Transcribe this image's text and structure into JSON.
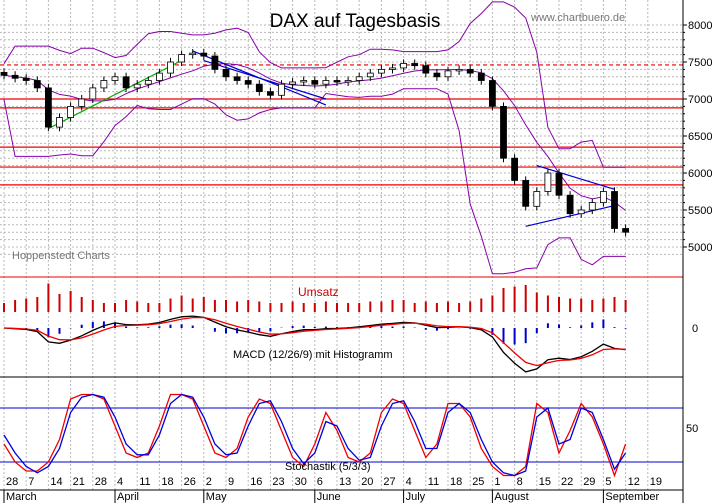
{
  "header": {
    "title": "DAX auf Tagesbasis",
    "website": "www.chartbuero.de",
    "source": "Hoppenstedt Charts"
  },
  "panels": {
    "volume_label": "Umsatz",
    "macd_label": "MACD (12/26/9) mit Histogramm",
    "stoch_label": "Stochastik (5/3/3)"
  },
  "colors": {
    "grid": "#b8b8b8",
    "resistance": "#ee0000",
    "bollinger": "#8800aa",
    "trendline": "#0000cc",
    "uptrend": "#00aa00",
    "stoch_k": "#ee0000",
    "stoch_d": "#0000dd",
    "stoch_band": "#0000cc",
    "volume": "#cc0000",
    "macd": "#000000",
    "signal": "#ee0000",
    "histogram": "#0000cc"
  },
  "chart_data": {
    "type": "candlestick",
    "title": "DAX auf Tagesbasis",
    "y_axis": {
      "ticks": [
        5000,
        5500,
        6000,
        6500,
        7000,
        7500,
        8000
      ],
      "range": [
        4900,
        8000
      ],
      "tick_labels": [
        "5000",
        "5500",
        "6000",
        "6500",
        "7000",
        "7500",
        "8000"
      ]
    },
    "x_axis": {
      "day_labels": [
        "28",
        "7",
        "14",
        "21",
        "28",
        "4",
        "11",
        "18",
        "26",
        "2",
        "9",
        "16",
        "23",
        "30",
        "6",
        "13",
        "20",
        "27",
        "4",
        "11",
        "18",
        "25",
        "1",
        "8",
        "15",
        "22",
        "29",
        "5",
        "12",
        "19"
      ],
      "month_labels": [
        "March",
        "April",
        "May",
        "June",
        "July",
        "August",
        "September"
      ]
    },
    "horizontal_levels": [
      7460,
      7000,
      6880,
      6350,
      6080,
      5840
    ],
    "price_series": {
      "name": "DAX",
      "x": [
        "2002-02-28",
        "2002-03-04",
        "2002-03-07",
        "2002-03-11",
        "2002-03-14",
        "2002-03-18",
        "2002-03-21",
        "2002-03-25",
        "2002-03-28",
        "2002-04-02",
        "2002-04-04",
        "2002-04-08",
        "2002-04-11",
        "2002-04-15",
        "2002-04-18",
        "2002-04-22",
        "2002-04-26",
        "2002-04-29",
        "2002-05-02",
        "2002-05-06",
        "2002-05-09",
        "2002-05-13",
        "2002-05-16",
        "2002-05-20",
        "2002-05-23",
        "2002-05-27",
        "2002-05-30",
        "2002-06-03",
        "2002-06-06",
        "2002-06-10",
        "2002-06-13",
        "2002-06-17",
        "2002-06-20",
        "2002-06-24",
        "2002-06-27",
        "2002-07-01",
        "2002-07-04",
        "2002-07-08",
        "2002-07-11",
        "2002-07-15",
        "2002-07-18",
        "2002-07-22",
        "2002-07-25",
        "2002-07-29",
        "2002-08-01",
        "2002-08-05",
        "2002-08-08",
        "2002-08-12",
        "2002-08-15",
        "2002-08-19",
        "2002-08-22",
        "2002-08-26",
        "2002-08-29",
        "2002-09-02",
        "2002-09-05",
        "2002-09-09",
        "2002-09-11"
      ],
      "close": [
        7320,
        7280,
        7250,
        7150,
        6620,
        6750,
        6900,
        7000,
        7150,
        7250,
        7300,
        7150,
        7200,
        7250,
        7350,
        7500,
        7600,
        7620,
        7580,
        7400,
        7300,
        7250,
        7200,
        7100,
        7050,
        7200,
        7230,
        7250,
        7200,
        7250,
        7230,
        7250,
        7300,
        7350,
        7400,
        7420,
        7480,
        7450,
        7350,
        7300,
        7380,
        7400,
        7350,
        7250,
        6900,
        6200,
        5900,
        5550,
        5750,
        6000,
        5700,
        5450,
        5500,
        5600,
        5750,
        5250,
        5200
      ]
    },
    "volume_panel": {
      "label": "Umsatz",
      "relative_volume": [
        0.3,
        0.4,
        0.45,
        0.5,
        0.95,
        0.6,
        0.7,
        0.5,
        0.4,
        0.3,
        0.3,
        0.4,
        0.35,
        0.3,
        0.3,
        0.45,
        0.55,
        0.45,
        0.5,
        0.4,
        0.4,
        0.35,
        0.4,
        0.35,
        0.3,
        0.3,
        0.35,
        0.3,
        0.3,
        0.35,
        0.3,
        0.3,
        0.3,
        0.35,
        0.35,
        0.4,
        0.4,
        0.3,
        0.35,
        0.3,
        0.35,
        0.3,
        0.35,
        0.45,
        0.55,
        0.8,
        0.85,
        0.9,
        0.65,
        0.55,
        0.5,
        0.45,
        0.45,
        0.4,
        0.45,
        0.5,
        0.4
      ]
    },
    "macd_panel": {
      "label": "MACD (12/26/9) mit Histogramm",
      "tick_labels": [
        "0"
      ]
    },
    "stochastic_panel": {
      "label": "Stochastik (5/3/3)",
      "tick_labels": [
        "50"
      ],
      "k": [
        40,
        20,
        10,
        10,
        20,
        45,
        90,
        95,
        95,
        90,
        60,
        30,
        25,
        30,
        60,
        95,
        95,
        90,
        60,
        30,
        25,
        35,
        70,
        90,
        85,
        55,
        25,
        15,
        40,
        75,
        55,
        25,
        20,
        30,
        75,
        90,
        85,
        55,
        25,
        40,
        85,
        85,
        70,
        35,
        15,
        5,
        5,
        15,
        85,
        75,
        30,
        55,
        85,
        70,
        40,
        5,
        40
      ],
      "d": [
        50,
        30,
        15,
        8,
        15,
        35,
        75,
        92,
        95,
        92,
        70,
        40,
        28,
        28,
        50,
        85,
        95,
        92,
        70,
        40,
        28,
        30,
        60,
        85,
        88,
        65,
        35,
        18,
        30,
        65,
        60,
        35,
        22,
        25,
        60,
        85,
        88,
        65,
        35,
        35,
        75,
        85,
        75,
        45,
        20,
        8,
        5,
        10,
        70,
        80,
        40,
        45,
        80,
        75,
        45,
        12,
        30
      ]
    }
  }
}
